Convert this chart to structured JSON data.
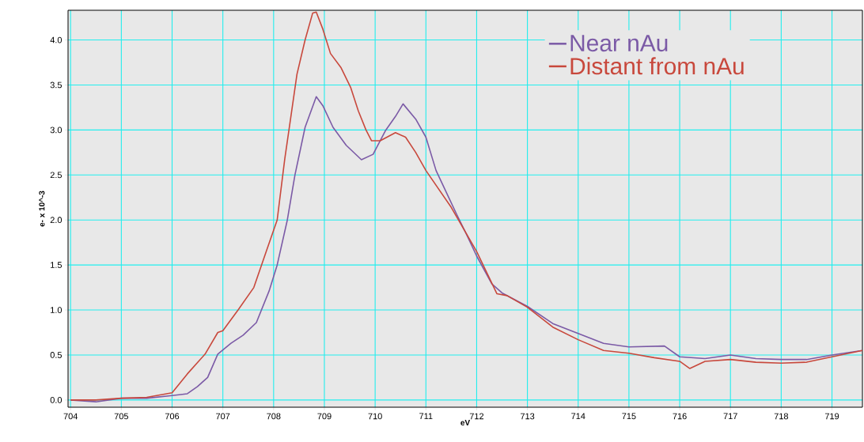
{
  "chart_data": {
    "type": "line",
    "xlabel": "eV",
    "ylabel": "e- x 10^-3",
    "xlim": [
      703.95,
      719.6
    ],
    "ylim": [
      -0.08,
      4.33
    ],
    "xticks": [
      704,
      705,
      706,
      707,
      708,
      709,
      710,
      711,
      712,
      713,
      714,
      715,
      716,
      717,
      718,
      719
    ],
    "yticks": [
      {
        "value": 0,
        "label": "0.0"
      },
      {
        "value": 0.5,
        "label": "0.5"
      },
      {
        "value": 1,
        "label": "1.0"
      },
      {
        "value": 1.5,
        "label": "1.5"
      },
      {
        "value": 2,
        "label": "2.0"
      },
      {
        "value": 2.5,
        "label": "2.5"
      },
      {
        "value": 3,
        "label": "3.0"
      },
      {
        "value": 3.5,
        "label": "3.5"
      },
      {
        "value": 4,
        "label": "4.0"
      }
    ],
    "grid": true,
    "legend": "top right",
    "marker": "none",
    "line_style": "solid",
    "series": [
      {
        "name": "Near nAu",
        "color": "#7b5aa6",
        "x": [
          704.0,
          704.5,
          705.0,
          705.5,
          706.0,
          706.3,
          706.5,
          706.7,
          706.9,
          707.16,
          707.4,
          707.66,
          707.91,
          708.07,
          708.27,
          708.42,
          708.62,
          708.84,
          708.97,
          709.17,
          709.43,
          709.73,
          709.96,
          710.2,
          710.4,
          710.55,
          710.8,
          711.0,
          711.2,
          711.4,
          711.6,
          711.8,
          712.0,
          712.3,
          712.5,
          713.0,
          713.5,
          714.0,
          714.5,
          715.0,
          715.7,
          716.0,
          716.5,
          717.0,
          717.5,
          718.0,
          718.5,
          719.0,
          719.6
        ],
        "values": [
          0.0,
          -0.02,
          0.02,
          0.02,
          0.05,
          0.07,
          0.15,
          0.25,
          0.51,
          0.63,
          0.72,
          0.86,
          1.21,
          1.5,
          2.0,
          2.5,
          3.03,
          3.37,
          3.27,
          3.03,
          2.83,
          2.67,
          2.73,
          2.99,
          3.15,
          3.29,
          3.12,
          2.92,
          2.55,
          2.31,
          2.07,
          1.84,
          1.6,
          1.29,
          1.19,
          1.04,
          0.85,
          0.74,
          0.63,
          0.59,
          0.6,
          0.48,
          0.46,
          0.5,
          0.46,
          0.45,
          0.45,
          0.5,
          0.55
        ]
      },
      {
        "name": "Distant from nAu",
        "color": "#c8483c",
        "x": [
          704.0,
          704.5,
          705.0,
          705.5,
          706.0,
          706.3,
          706.65,
          706.9,
          707.0,
          707.3,
          707.61,
          707.86,
          708.07,
          708.22,
          708.31,
          708.46,
          708.62,
          708.77,
          708.84,
          708.97,
          709.12,
          709.33,
          709.52,
          709.67,
          709.82,
          709.93,
          710.1,
          710.4,
          710.6,
          710.8,
          711.0,
          711.5,
          712.0,
          712.4,
          712.6,
          713.0,
          713.5,
          714.0,
          714.5,
          715.0,
          715.5,
          716.0,
          716.2,
          716.5,
          717.0,
          717.5,
          718.0,
          718.5,
          719.0,
          719.6
        ],
        "values": [
          0.0,
          0.0,
          0.02,
          0.03,
          0.08,
          0.29,
          0.51,
          0.75,
          0.77,
          1.0,
          1.25,
          1.66,
          2.0,
          2.68,
          3.03,
          3.62,
          4.0,
          4.3,
          4.31,
          4.12,
          3.85,
          3.69,
          3.47,
          3.21,
          3.0,
          2.88,
          2.88,
          2.97,
          2.92,
          2.75,
          2.55,
          2.14,
          1.65,
          1.18,
          1.16,
          1.03,
          0.81,
          0.67,
          0.55,
          0.52,
          0.47,
          0.43,
          0.35,
          0.43,
          0.45,
          0.42,
          0.41,
          0.42,
          0.48,
          0.55
        ]
      }
    ]
  }
}
